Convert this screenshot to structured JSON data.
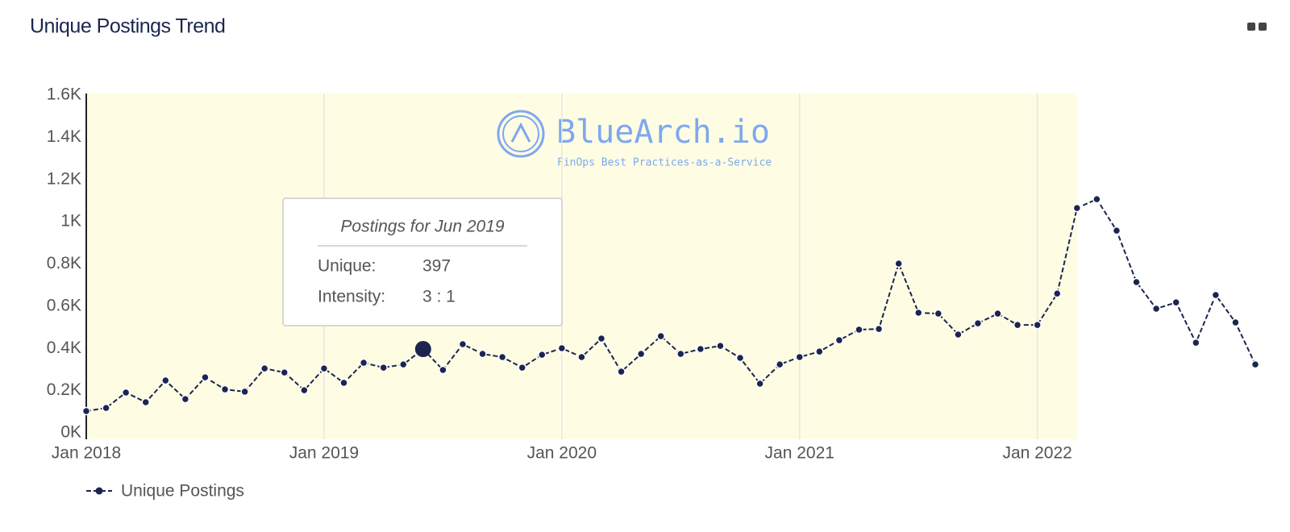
{
  "chart_data": {
    "type": "line",
    "title": "Unique Postings Trend",
    "x": [
      "2018-01",
      "2018-02",
      "2018-03",
      "2018-04",
      "2018-05",
      "2018-06",
      "2018-07",
      "2018-08",
      "2018-09",
      "2018-10",
      "2018-11",
      "2018-12",
      "2019-01",
      "2019-02",
      "2019-03",
      "2019-04",
      "2019-05",
      "2019-06",
      "2019-07",
      "2019-08",
      "2019-09",
      "2019-10",
      "2019-11",
      "2019-12",
      "2020-01",
      "2020-02",
      "2020-03",
      "2020-04",
      "2020-05",
      "2020-06",
      "2020-07",
      "2020-08",
      "2020-09",
      "2020-10",
      "2020-11",
      "2020-12",
      "2021-01",
      "2021-02",
      "2021-03",
      "2021-04",
      "2021-05",
      "2021-06",
      "2021-07",
      "2021-08",
      "2021-09",
      "2021-10",
      "2021-11",
      "2021-12",
      "2022-01",
      "2022-02",
      "2022-03",
      "2022-04",
      "2022-05",
      "2022-06",
      "2022-07",
      "2022-08",
      "2022-09",
      "2022-10",
      "2022-11",
      "2022-12"
    ],
    "series": [
      {
        "name": "Unique Postings",
        "color": "#1b2550",
        "values": [
          103,
          118,
          191,
          145,
          248,
          160,
          263,
          206,
          195,
          305,
          286,
          202,
          305,
          237,
          332,
          309,
          324,
          397,
          298,
          420,
          374,
          359,
          309,
          370,
          401,
          359,
          447,
          290,
          374,
          458,
          374,
          397,
          412,
          355,
          233,
          324,
          359,
          385,
          439,
          489,
          492,
          802,
          569,
          565,
          466,
          519,
          565,
          511,
          511,
          660,
          1065,
          1107,
          958,
          714,
          588,
          618,
          427,
          653,
          523,
          324
        ]
      }
    ],
    "xlim": [
      "2018-01",
      "2022-12"
    ],
    "xticks": [
      {
        "value": "2018-01",
        "label": "Jan 2018"
      },
      {
        "value": "2019-01",
        "label": "Jan 2019"
      },
      {
        "value": "2020-01",
        "label": "Jan 2020"
      },
      {
        "value": "2021-01",
        "label": "Jan 2021"
      },
      {
        "value": "2022-01",
        "label": "Jan 2022"
      }
    ],
    "ylim": [
      0,
      1600
    ],
    "yticks": [
      {
        "value": 0,
        "label": "0K"
      },
      {
        "value": 200,
        "label": "0.2K"
      },
      {
        "value": 400,
        "label": "0.4K"
      },
      {
        "value": 600,
        "label": "0.6K"
      },
      {
        "value": 800,
        "label": "0.8K"
      },
      {
        "value": 1000,
        "label": "1K"
      },
      {
        "value": 1200,
        "label": "1.2K"
      },
      {
        "value": 1400,
        "label": "1.4K"
      },
      {
        "value": 1600,
        "label": "1.6K"
      }
    ],
    "grid": "x",
    "shaded_range": [
      "2018-01",
      "2022-03"
    ],
    "shade_color": "#fefde3",
    "legend": "bottom-left",
    "active_point": "2019-06",
    "tooltip": {
      "title": "Postings for Jun 2019",
      "rows": [
        {
          "label": "Unique:",
          "value": 397
        },
        {
          "label": "Intensity:",
          "value": "3 : 1"
        }
      ]
    },
    "watermark": {
      "name": "BlueArch.io",
      "tagline": "FinOps Best Practices-as-a-Service"
    }
  }
}
